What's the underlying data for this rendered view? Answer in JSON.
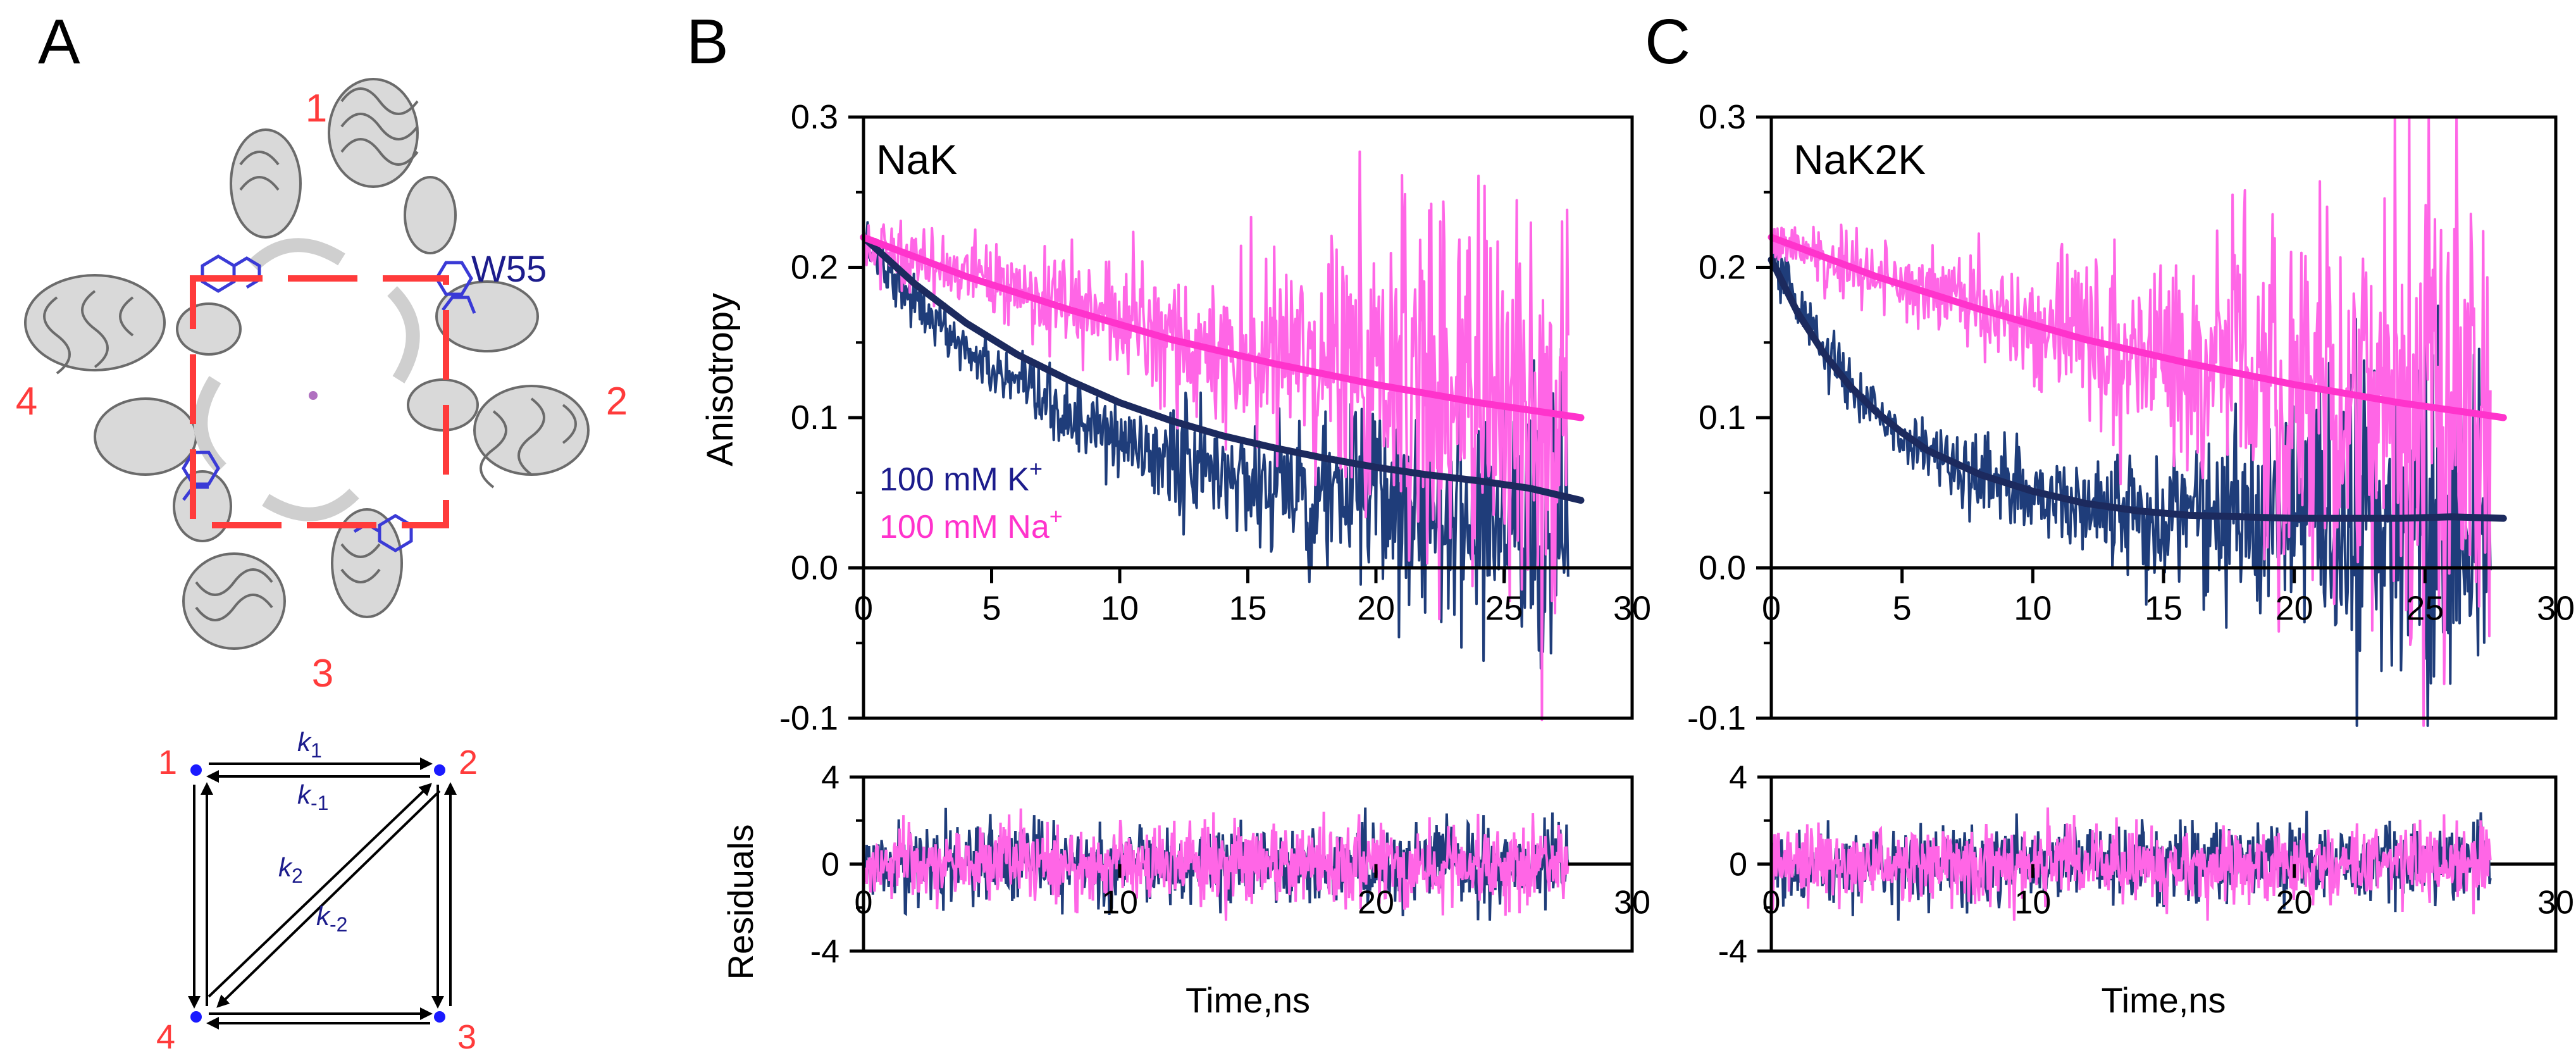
{
  "panels": {
    "A": {
      "letter": "A",
      "subunit_labels": [
        "1",
        "2",
        "3",
        "4"
      ],
      "residue_label": "W55",
      "scheme_nodes": [
        "1",
        "2",
        "3",
        "4"
      ],
      "rate_labels": {
        "k1": {
          "base": "k",
          "sub": "1"
        },
        "km1": {
          "base": "k",
          "sub": "-1"
        },
        "k2": {
          "base": "k",
          "sub": "2"
        },
        "km2": {
          "base": "k",
          "sub": "-2"
        }
      }
    },
    "B": {
      "letter": "B"
    },
    "C": {
      "letter": "C"
    }
  },
  "colors": {
    "k_series": "#1f3d7a",
    "k_fit": "#1c2a5e",
    "na_series": "#ff66e6",
    "na_fit": "#ff33cc",
    "label_red": "#ff3b3b",
    "label_blue": "#1c1c8c"
  },
  "chart_data": [
    {
      "type": "line",
      "panel": "B",
      "title": "NaK",
      "xlabel": "Time,ns",
      "ylabel": "Anisotropy",
      "xlim": [
        0,
        30
      ],
      "ylim": [
        -0.1,
        0.3
      ],
      "xticks": [
        "0",
        "5",
        "10",
        "15",
        "20",
        "25",
        "30"
      ],
      "yticks": [
        "0.3",
        "0.2",
        "0.1",
        "0.0",
        "-0.1"
      ],
      "legend": {
        "placement": "bottom-left",
        "entries": [
          {
            "text": "100 mM K",
            "sup": "+",
            "color": "#1c1c8c"
          },
          {
            "text": "100 mM Na",
            "sup": "+",
            "color": "#ff33cc"
          }
        ]
      },
      "series": [
        {
          "name": "100 mM K+",
          "kind": "data",
          "x_range": [
            0,
            27.5
          ],
          "r0": 0.22,
          "amp": 0.19,
          "tau": 8,
          "offset": 0.03,
          "noise_base": 0.008,
          "noise_growth": 0.045
        },
        {
          "name": "100 mM K+",
          "kind": "fit",
          "x": [
            0,
            2,
            4,
            6,
            8,
            10,
            12,
            14,
            16,
            18,
            20,
            22,
            24,
            26,
            28
          ],
          "y": [
            0.22,
            0.189,
            0.163,
            0.142,
            0.125,
            0.11,
            0.098,
            0.088,
            0.08,
            0.073,
            0.067,
            0.062,
            0.058,
            0.053,
            0.045
          ]
        },
        {
          "name": "100 mM Na+",
          "kind": "data",
          "x_range": [
            0,
            27.5
          ],
          "r0": 0.22,
          "amp": 0.17,
          "tau": 25,
          "offset": 0.05,
          "noise_base": 0.01,
          "noise_growth": 0.08
        },
        {
          "name": "100 mM Na+",
          "kind": "fit",
          "x": [
            0,
            2,
            4,
            6,
            8,
            10,
            12,
            14,
            16,
            18,
            20,
            22,
            24,
            26,
            28
          ],
          "y": [
            0.22,
            0.207,
            0.194,
            0.183,
            0.172,
            0.162,
            0.152,
            0.144,
            0.136,
            0.129,
            0.122,
            0.116,
            0.11,
            0.105,
            0.1
          ]
        }
      ],
      "residuals": {
        "ylabel": "Residuals",
        "ylim": [
          -4,
          4
        ],
        "yticks": [
          "4",
          "0",
          "-4"
        ],
        "xticks": [
          "0",
          "10",
          "20",
          "30"
        ],
        "xlim": [
          0,
          30
        ],
        "x_range": [
          0,
          27.5
        ],
        "amplitude": 1.6
      }
    },
    {
      "type": "line",
      "panel": "C",
      "title": "NaK2K",
      "xlabel": "Time,ns",
      "ylabel": "",
      "xlim": [
        0,
        30
      ],
      "ylim": [
        -0.1,
        0.3
      ],
      "xticks": [
        "0",
        "5",
        "10",
        "15",
        "20",
        "25",
        "30"
      ],
      "yticks": [
        "0.3",
        "0.2",
        "0.1",
        "0.0",
        "-0.1"
      ],
      "series": [
        {
          "name": "100 mM K+",
          "kind": "data",
          "x_range": [
            0,
            27.5
          ],
          "r0": 0.21,
          "amp": 0.18,
          "tau": 4.5,
          "offset": 0.03,
          "noise_base": 0.008,
          "noise_growth": 0.06
        },
        {
          "name": "100 mM K+",
          "kind": "fit",
          "x": [
            0,
            1,
            2,
            3,
            4,
            5,
            6,
            8,
            10,
            12,
            14,
            16,
            18,
            20,
            22,
            24,
            26,
            28
          ],
          "y": [
            0.205,
            0.17,
            0.143,
            0.121,
            0.104,
            0.09,
            0.078,
            0.062,
            0.051,
            0.043,
            0.038,
            0.035,
            0.034,
            0.033,
            0.033,
            0.033,
            0.034,
            0.033
          ]
        },
        {
          "name": "100 mM Na+",
          "kind": "data",
          "x_range": [
            0,
            27.5
          ],
          "r0": 0.22,
          "amp": 0.17,
          "tau": 24,
          "offset": 0.05,
          "noise_base": 0.01,
          "noise_growth": 0.08
        },
        {
          "name": "100 mM Na+",
          "kind": "fit",
          "x": [
            0,
            2,
            4,
            6,
            8,
            10,
            12,
            14,
            16,
            18,
            20,
            22,
            24,
            26,
            28
          ],
          "y": [
            0.22,
            0.207,
            0.194,
            0.183,
            0.172,
            0.162,
            0.152,
            0.144,
            0.136,
            0.129,
            0.122,
            0.116,
            0.11,
            0.105,
            0.1
          ]
        }
      ],
      "residuals": {
        "ylabel": "",
        "ylim": [
          -4,
          4
        ],
        "yticks": [
          "4",
          "0",
          "-4"
        ],
        "xticks": [
          "0",
          "10",
          "20",
          "30"
        ],
        "xlim": [
          0,
          30
        ],
        "x_range": [
          0,
          27.5
        ],
        "amplitude": 1.6
      }
    }
  ]
}
